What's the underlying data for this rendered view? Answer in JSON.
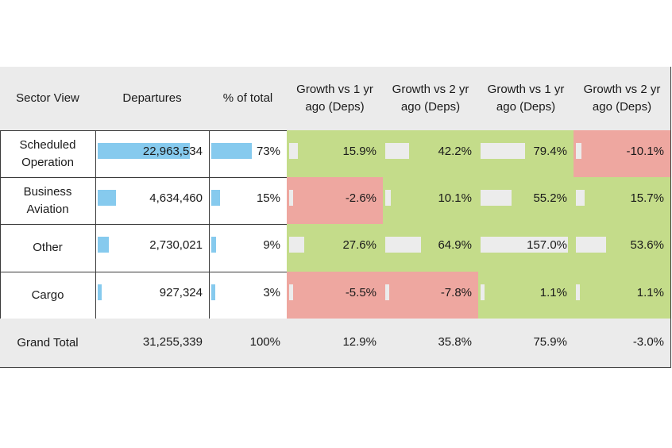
{
  "colors": {
    "positive": "#c4dc8a",
    "negative": "#eea7a0",
    "header_bg": "#ebebeb",
    "total_bg": "#ebebeb",
    "bar_blue": "#86caee",
    "bar_light": "#ececec"
  },
  "chart_data": {
    "type": "table",
    "columns": [
      "Sector View",
      "Departures",
      "% of total",
      "Growth vs 1 yr ago (Deps)",
      "Growth vs 2 yr ago (Deps)",
      "Growth vs 1 yr ago (Deps)",
      "Growth vs 2 yr ago (Deps)"
    ],
    "rows": [
      {
        "sector": "Scheduled Operation",
        "departures": 22963534,
        "departures_label": "22,963,534",
        "pct_total": 73,
        "pct_label": "73%",
        "growth": [
          15.9,
          42.2,
          79.4,
          -10.1
        ],
        "growth_labels": [
          "15.9%",
          "42.2%",
          "79.4%",
          "-10.1%"
        ]
      },
      {
        "sector": "Business Aviation",
        "departures": 4634460,
        "departures_label": "4,634,460",
        "pct_total": 15,
        "pct_label": "15%",
        "growth": [
          -2.6,
          10.1,
          55.2,
          15.7
        ],
        "growth_labels": [
          "-2.6%",
          "10.1%",
          "55.2%",
          "15.7%"
        ]
      },
      {
        "sector": "Other",
        "departures": 2730021,
        "departures_label": "2,730,021",
        "pct_total": 9,
        "pct_label": "9%",
        "growth": [
          27.6,
          64.9,
          157.0,
          53.6
        ],
        "growth_labels": [
          "27.6%",
          "64.9%",
          "157.0%",
          "53.6%"
        ]
      },
      {
        "sector": "Cargo",
        "departures": 927324,
        "departures_label": "927,324",
        "pct_total": 3,
        "pct_label": "3%",
        "growth": [
          -5.5,
          -7.8,
          1.1,
          1.1
        ],
        "growth_labels": [
          "-5.5%",
          "-7.8%",
          "1.1%",
          "1.1%"
        ]
      }
    ],
    "total": {
      "sector": "Grand Total",
      "departures_label": "31,255,339",
      "pct_label": "100%",
      "growth_labels": [
        "12.9%",
        "35.8%",
        "75.9%",
        "-3.0%"
      ]
    }
  }
}
